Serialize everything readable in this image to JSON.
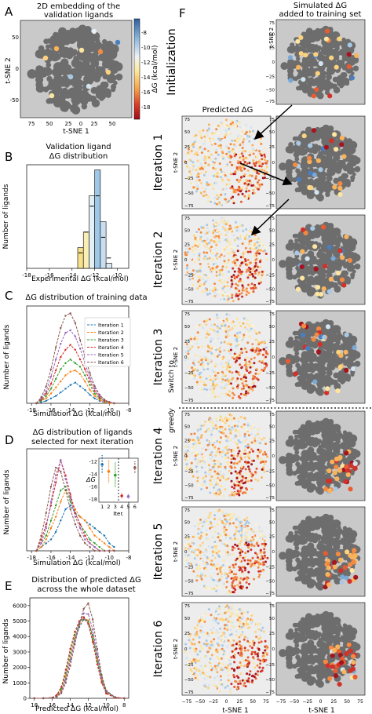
{
  "panels": {
    "A": {
      "letter": "A",
      "title_line1": "2D embedding of the",
      "title_line2": "validation ligands",
      "xlabel": "t-SNE 1",
      "ylabel": "t-SNE 2",
      "xticks": [
        "75",
        "50",
        "25",
        "0",
        "25",
        "50"
      ],
      "yticks": [
        "50",
        "0",
        "-50"
      ],
      "colorbar_label": "ΔG (kcal/mol)",
      "colorbar_ticks": [
        "-8",
        "-10",
        "-12",
        "-14",
        "-16",
        "-18"
      ]
    },
    "B": {
      "letter": "B",
      "title_line1": "Validation ligand",
      "title_line2": "ΔG distribution",
      "xlabel": "Experimental ΔG (kcal/mol)",
      "ylabel": "Number of ligands",
      "xticks": [
        "-18",
        "-16",
        "-14",
        "-12",
        "-10"
      ]
    },
    "C": {
      "letter": "C",
      "title": "ΔG distribution of training data",
      "xlabel": "Simulation ΔG (kcal/mol)",
      "ylabel": "Number of ligands",
      "xticks": [
        "-18",
        "-16",
        "-14",
        "-12",
        "-10",
        "-8"
      ]
    },
    "D": {
      "letter": "D",
      "title_line1": "ΔG distribution of ligands",
      "title_line2": "selected for next iteration",
      "xlabel": "Simulation ΔG (kcal/mol)",
      "ylabel": "Number of ligands",
      "xticks": [
        "-18",
        "-16",
        "-14",
        "-12",
        "-10",
        "-8"
      ],
      "inset_ylabel": "ΔG",
      "inset_xlabel": "Iter.",
      "inset_yticks": [
        "-12",
        "-14",
        "-16",
        "-18"
      ],
      "inset_xticks": [
        "1",
        "2",
        "3",
        "4",
        "5",
        "6"
      ]
    },
    "E": {
      "letter": "E",
      "title_line1": "Distribution of predicted ΔG",
      "title_line2": "across the whole dataset",
      "xlabel": "Predicted ΔG (kcal/mol)",
      "ylabel": "Number of ligands",
      "xticks": [
        "18",
        "16",
        "14",
        "12",
        "10",
        "8"
      ],
      "yticks": [
        "6000",
        "5000",
        "4000",
        "3000",
        "2000",
        "1000",
        "0"
      ]
    },
    "F": {
      "letter": "F",
      "predicted_title": "Predicted ΔG",
      "simulated_title_line1": "Simulated ΔG",
      "simulated_title_line2": "added to training set",
      "switch_label_line1": "Switch to",
      "switch_label_line2": "greedy",
      "rows": [
        "Initialization",
        "Iteration 1",
        "Iteration 2",
        "Iteration 3",
        "Iteration 4",
        "Iteration 5",
        "Iteration 6"
      ],
      "xticks": [
        "−75",
        "−50",
        "−25",
        "0",
        "25",
        "50",
        "75"
      ],
      "yticks": [
        "75",
        "50",
        "25",
        "0",
        "−25",
        "−50",
        "−75"
      ],
      "xlabel": "t-SNE 1",
      "ylabel": "t-SNE 2"
    }
  },
  "colors": {
    "panel_bg": "#c9c9c9",
    "cluster": "#6d6d6d",
    "legend_line": "#333333"
  },
  "chart_data": [
    {
      "id": "B",
      "type": "bar",
      "categories": [
        "-13.5",
        "-13",
        "-12.5",
        "-12",
        "-11.5",
        "-11"
      ],
      "values": [
        4,
        7,
        14,
        19,
        9,
        1
      ],
      "overlay_steps": [
        3,
        7,
        12,
        14,
        6,
        2
      ],
      "xlim": [
        -18,
        -9
      ]
    },
    {
      "id": "C",
      "type": "line",
      "x": [
        -17.5,
        -17,
        -16.5,
        -16,
        -15.5,
        -15,
        -14.5,
        -14,
        -13.5,
        -13,
        -12.5,
        -12,
        -11.5,
        -11,
        -10.5,
        -10,
        -9.5
      ],
      "series": [
        {
          "name": "Iteration 1",
          "color": "#1f77b4",
          "values": [
            0,
            1,
            2,
            4,
            6,
            9,
            12,
            15,
            17,
            14,
            11,
            7,
            4,
            2,
            1,
            0,
            0
          ]
        },
        {
          "name": "Iteration 2",
          "color": "#ff7f0e",
          "values": [
            0,
            2,
            4,
            8,
            13,
            18,
            23,
            26,
            27,
            24,
            18,
            11,
            6,
            3,
            1,
            0,
            0
          ]
        },
        {
          "name": "Iteration 3",
          "color": "#2ca02c",
          "values": [
            0,
            2,
            6,
            12,
            20,
            28,
            33,
            36,
            33,
            30,
            23,
            15,
            8,
            4,
            2,
            1,
            0
          ]
        },
        {
          "name": "Iteration 4",
          "color": "#d62728",
          "values": [
            0,
            3,
            8,
            16,
            27,
            38,
            44,
            48,
            44,
            36,
            28,
            18,
            10,
            5,
            2,
            1,
            0
          ]
        },
        {
          "name": "Iteration 5",
          "color": "#9467bd",
          "values": [
            0,
            4,
            10,
            22,
            36,
            49,
            58,
            60,
            55,
            45,
            33,
            21,
            12,
            6,
            3,
            1,
            0
          ]
        },
        {
          "name": "Iteration 6",
          "color": "#8c564b",
          "values": [
            0,
            5,
            14,
            28,
            46,
            62,
            72,
            74,
            66,
            52,
            38,
            25,
            14,
            7,
            3,
            1,
            0
          ]
        }
      ],
      "xlim": [
        -18.5,
        -8
      ],
      "ylim": [
        0,
        80
      ]
    },
    {
      "id": "D",
      "type": "line",
      "x": [
        -17.5,
        -17,
        -16.5,
        -16,
        -15.5,
        -15,
        -14.5,
        -14,
        -13.5,
        -13,
        -12.5,
        -12,
        -11.5,
        -11,
        -10.5,
        -10,
        -9.5
      ],
      "series": [
        {
          "name": "Iteration 1",
          "color": "#1f77b4",
          "values": [
            0,
            1,
            2,
            3,
            5,
            8,
            11,
            12,
            10,
            9,
            8,
            7,
            6,
            5,
            4,
            2,
            1
          ]
        },
        {
          "name": "Iteration 2",
          "color": "#ff7f0e",
          "values": [
            0,
            1,
            3,
            6,
            9,
            13,
            16,
            14,
            11,
            9,
            8,
            6,
            4,
            3,
            2,
            1,
            0
          ]
        },
        {
          "name": "Iteration 3",
          "color": "#2ca02c",
          "values": [
            0,
            2,
            4,
            8,
            12,
            16,
            17,
            13,
            10,
            7,
            5,
            3,
            2,
            1,
            0,
            0,
            0
          ]
        },
        {
          "name": "Iteration 4",
          "color": "#d62728",
          "values": [
            0,
            3,
            7,
            12,
            18,
            24,
            20,
            15,
            10,
            7,
            4,
            2,
            1,
            0,
            0,
            0,
            0
          ]
        },
        {
          "name": "Iteration 5",
          "color": "#9467bd",
          "values": [
            0,
            2,
            6,
            13,
            20,
            24,
            19,
            14,
            9,
            6,
            3,
            2,
            1,
            0,
            0,
            0,
            0
          ]
        },
        {
          "name": "Iteration 6",
          "color": "#8c564b",
          "values": [
            0,
            4,
            10,
            17,
            22,
            21,
            16,
            11,
            7,
            4,
            2,
            1,
            0,
            0,
            0,
            0,
            0
          ]
        }
      ],
      "xlim": [
        -18.5,
        -8
      ],
      "ylim": [
        0,
        27
      ],
      "inset": {
        "x": [
          1,
          2,
          3,
          4,
          5,
          6
        ],
        "medians": [
          -12.5,
          -13.6,
          -14.2,
          -17.5,
          -17.6,
          -13.0
        ],
        "spreads": [
          1.5,
          1.8,
          2.0,
          0.4,
          0.4,
          1.0
        ],
        "switch_after": 3.5,
        "ylim": [
          -18.5,
          -11.5
        ]
      }
    },
    {
      "id": "E",
      "type": "line",
      "x": [
        -18,
        -17,
        -16,
        -15.5,
        -15,
        -14.5,
        -14,
        -13.5,
        -13,
        -12.5,
        -12,
        -11.5,
        -11,
        -10.5,
        -10,
        -9,
        -8
      ],
      "series": [
        {
          "name": "Iteration 1",
          "color": "#1f77b4",
          "values": [
            0,
            0,
            20,
            120,
            450,
            1300,
            2500,
            3700,
            4600,
            5100,
            5000,
            4100,
            2600,
            1300,
            450,
            60,
            0
          ]
        },
        {
          "name": "Iteration 2",
          "color": "#ff7f0e",
          "values": [
            0,
            0,
            30,
            150,
            520,
            1450,
            2700,
            3900,
            4750,
            5200,
            5050,
            4000,
            2500,
            1200,
            400,
            50,
            0
          ]
        },
        {
          "name": "Iteration 3",
          "color": "#2ca02c",
          "values": [
            0,
            0,
            40,
            190,
            620,
            1650,
            2950,
            4100,
            4900,
            5250,
            4950,
            3850,
            2350,
            1100,
            350,
            40,
            0
          ]
        },
        {
          "name": "Iteration 4",
          "color": "#d62728",
          "values": [
            0,
            0,
            50,
            230,
            730,
            1850,
            3200,
            4300,
            5000,
            5250,
            4800,
            3650,
            2200,
            1000,
            300,
            30,
            0
          ]
        },
        {
          "name": "Iteration 5",
          "color": "#9467bd",
          "values": [
            0,
            0,
            25,
            110,
            400,
            1200,
            2400,
            3750,
            4850,
            5500,
            5450,
            4450,
            2800,
            1350,
            450,
            60,
            0
          ]
        },
        {
          "name": "Iteration 6",
          "color": "#8c564b",
          "values": [
            0,
            0,
            20,
            90,
            330,
            1000,
            2100,
            3500,
            4800,
            5800,
            6150,
            5100,
            3200,
            1500,
            500,
            70,
            0
          ]
        }
      ],
      "xlim": [
        -18.5,
        -7.5
      ],
      "ylim": [
        0,
        6500
      ]
    }
  ]
}
